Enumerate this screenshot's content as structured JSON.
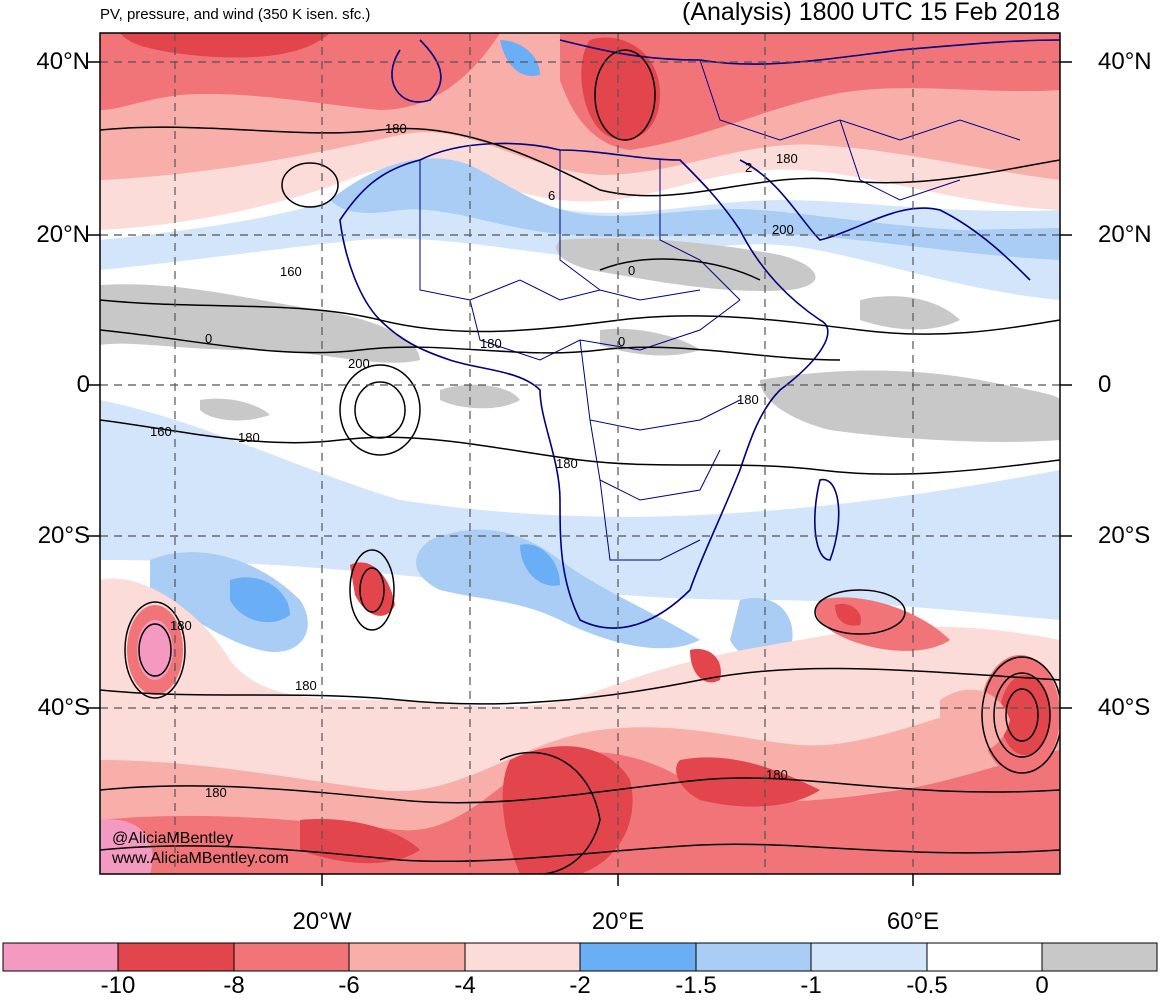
{
  "header": {
    "subtitle": "PV, pressure, and wind (350 K isen. sfc.)",
    "title": "(Analysis) 1800 UTC 15 Feb 2018"
  },
  "map": {
    "lat_labels": [
      "40°N",
      "20°N",
      "0",
      "20°S",
      "40°S"
    ],
    "lon_labels": [
      "20°W",
      "20°E",
      "60°E"
    ],
    "contour_labels": [
      "180",
      "180",
      "180",
      "6",
      "2",
      "160",
      "0",
      "200",
      "0",
      "180",
      "0",
      "200",
      "180",
      "160",
      "180",
      "180",
      "180",
      "180",
      "180"
    ],
    "credit": [
      "@AliciaMBentley",
      "www.AliciaMBentley.com"
    ]
  },
  "colorbar": {
    "labels": [
      "-10",
      "-8",
      "-6",
      "-4",
      "-2",
      "-1.5",
      "-1",
      "-0.5",
      "0"
    ],
    "colors": [
      "#f49ac1",
      "#e2454b",
      "#f17479",
      "#f8afaa",
      "#fbdcd8",
      "#6aaff6",
      "#a9cdf4",
      "#d3e5fa",
      "#ffffff",
      "#c8c8c8"
    ]
  }
}
